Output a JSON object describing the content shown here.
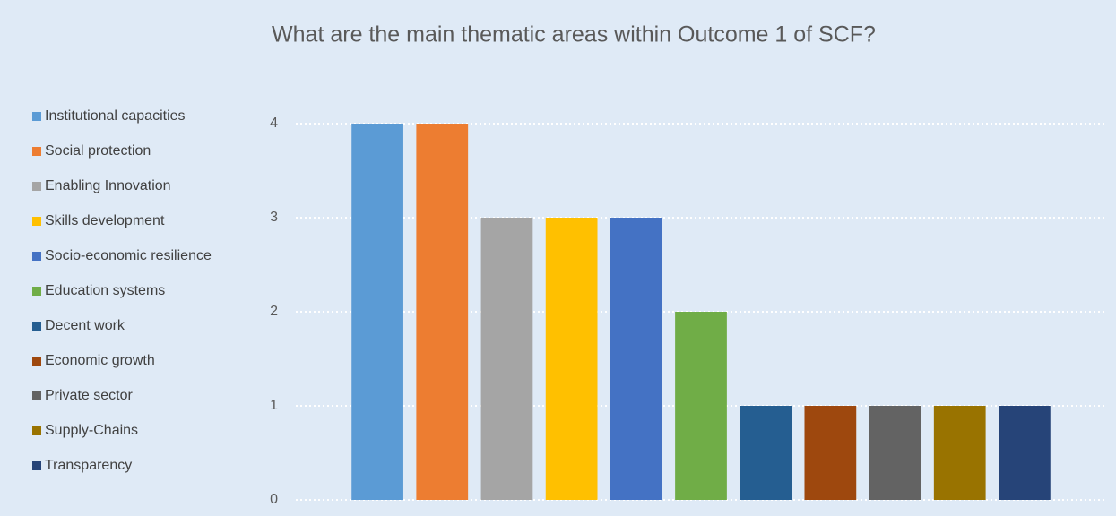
{
  "chart_data": {
    "type": "bar",
    "title": "What are the main thematic areas within Outcome 1 of SCF?",
    "categories": [
      null
    ],
    "series": [
      {
        "name": "Institutional capacities",
        "color": "#5b9bd5",
        "values": [
          4
        ]
      },
      {
        "name": "Social protection",
        "color": "#ed7d31",
        "values": [
          4
        ]
      },
      {
        "name": "Enabling Innovation",
        "color": "#a5a5a5",
        "values": [
          3
        ]
      },
      {
        "name": "Skills development",
        "color": "#ffc000",
        "values": [
          3
        ]
      },
      {
        "name": "Socio-economic resilience",
        "color": "#4472c4",
        "values": [
          3
        ]
      },
      {
        "name": "Education systems",
        "color": "#70ad47",
        "values": [
          2
        ]
      },
      {
        "name": "Decent work",
        "color": "#255e91",
        "values": [
          1
        ]
      },
      {
        "name": "Economic growth",
        "color": "#9e480e",
        "values": [
          1
        ]
      },
      {
        "name": "Private sector",
        "color": "#636363",
        "values": [
          1
        ]
      },
      {
        "name": "Supply-Chains",
        "color": "#997300",
        "values": [
          1
        ]
      },
      {
        "name": "Transparency",
        "color": "#264478",
        "values": [
          1
        ]
      }
    ],
    "ylim": [
      0,
      4
    ],
    "yticks": [
      0,
      1,
      2,
      3,
      4
    ],
    "grid": true,
    "legend": "left"
  }
}
